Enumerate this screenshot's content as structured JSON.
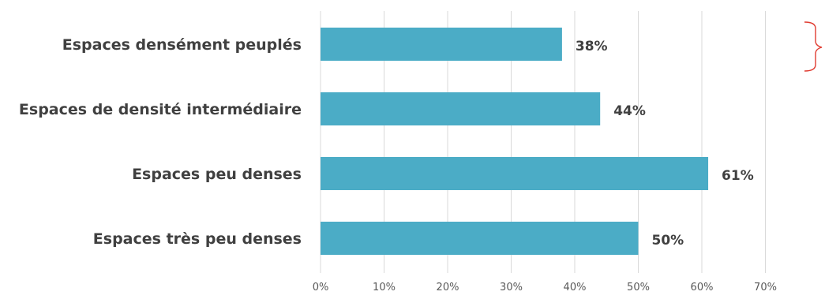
{
  "colors": {
    "bar": "#4bacc6",
    "grid": "#d9d9d9",
    "bracket": "#e03c31",
    "text": "#404040"
  },
  "chart_data": {
    "type": "bar",
    "orientation": "horizontal",
    "title": "",
    "xlabel": "",
    "ylabel": "",
    "categories": [
      "Espaces densément peuplés",
      "Espaces de densité intermédiaire",
      "Espaces peu denses",
      "Espaces très peu denses"
    ],
    "values": [
      38,
      44,
      61,
      50
    ],
    "data_labels": [
      "38%",
      "44%",
      "61%",
      "50%"
    ],
    "xlim": [
      0,
      70
    ],
    "ticks": [
      0,
      10,
      20,
      30,
      40,
      50,
      60,
      70
    ],
    "tick_labels": [
      "0%",
      "10%",
      "20%",
      "30%",
      "40%",
      "50%",
      "60%",
      "70%"
    ],
    "grid": true,
    "legend": "none"
  }
}
